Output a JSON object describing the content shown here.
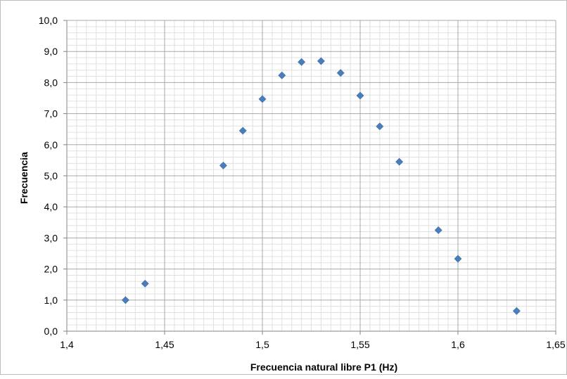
{
  "chart_data": {
    "type": "scatter",
    "title": "",
    "xlabel": "Frecuencia natural libre P1 (Hz)",
    "ylabel": "Frecuencia",
    "xlim": [
      1.4,
      1.65
    ],
    "ylim": [
      0,
      10
    ],
    "x_ticks": [
      "1,4",
      "1,45",
      "1,5",
      "1,55",
      "1,6",
      "1,65"
    ],
    "y_ticks": [
      "0,0",
      "1,0",
      "2,0",
      "3,0",
      "4,0",
      "5,0",
      "6,0",
      "7,0",
      "8,0",
      "9,0",
      "10,0"
    ],
    "grid": true,
    "legend": "none",
    "marker": "diamond",
    "marker_color": "#4a7ebb",
    "points": [
      {
        "x": 1.43,
        "y": 1.0
      },
      {
        "x": 1.44,
        "y": 1.53
      },
      {
        "x": 1.48,
        "y": 5.33
      },
      {
        "x": 1.49,
        "y": 6.45
      },
      {
        "x": 1.5,
        "y": 7.47
      },
      {
        "x": 1.51,
        "y": 8.23
      },
      {
        "x": 1.52,
        "y": 8.66
      },
      {
        "x": 1.53,
        "y": 8.69
      },
      {
        "x": 1.54,
        "y": 8.31
      },
      {
        "x": 1.55,
        "y": 7.58
      },
      {
        "x": 1.56,
        "y": 6.59
      },
      {
        "x": 1.57,
        "y": 5.45
      },
      {
        "x": 1.59,
        "y": 3.25
      },
      {
        "x": 1.6,
        "y": 2.33
      },
      {
        "x": 1.63,
        "y": 0.65
      }
    ]
  }
}
